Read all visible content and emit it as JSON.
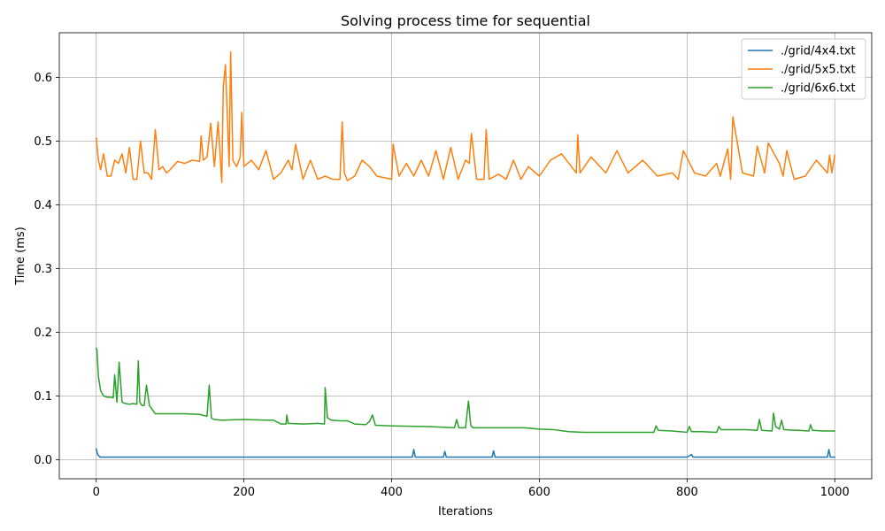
{
  "chart_data": {
    "type": "line",
    "title": "Solving process time for sequential",
    "xlabel": "Iterations",
    "ylabel": "Time (ms)",
    "xlim": [
      -50,
      1050
    ],
    "ylim": [
      -0.03,
      0.67
    ],
    "xticks": [
      0,
      200,
      400,
      600,
      800,
      1000
    ],
    "yticks": [
      0.0,
      0.1,
      0.2,
      0.3,
      0.4,
      0.5,
      0.6
    ],
    "xtick_labels": [
      "0",
      "200",
      "400",
      "600",
      "800",
      "1000"
    ],
    "ytick_labels": [
      "0.0",
      "0.1",
      "0.2",
      "0.3",
      "0.4",
      "0.5",
      "0.6"
    ],
    "grid": true,
    "legend_position": "top-right",
    "series": [
      {
        "name": "./grid/4x4.txt",
        "color": "#1f77b4",
        "x": [
          0,
          2,
          5,
          20,
          60,
          100,
          150,
          200,
          250,
          300,
          350,
          400,
          428,
          430,
          432,
          470,
          472,
          474,
          536,
          538,
          540,
          600,
          650,
          700,
          750,
          800,
          806,
          808,
          810,
          850,
          900,
          950,
          990,
          992,
          994,
          1000
        ],
        "y": [
          0.017,
          0.008,
          0.004,
          0.004,
          0.004,
          0.004,
          0.004,
          0.004,
          0.004,
          0.004,
          0.004,
          0.004,
          0.004,
          0.016,
          0.004,
          0.004,
          0.013,
          0.004,
          0.004,
          0.014,
          0.004,
          0.004,
          0.004,
          0.004,
          0.004,
          0.004,
          0.008,
          0.004,
          0.004,
          0.004,
          0.004,
          0.004,
          0.004,
          0.016,
          0.004,
          0.004
        ]
      },
      {
        "name": "./grid/5x5.txt",
        "color": "#ff7f0e",
        "x": [
          0,
          3,
          6,
          10,
          15,
          20,
          25,
          30,
          35,
          40,
          45,
          50,
          55,
          60,
          65,
          70,
          75,
          80,
          85,
          90,
          95,
          100,
          110,
          120,
          130,
          140,
          142,
          145,
          150,
          155,
          160,
          165,
          170,
          172,
          175,
          180,
          182,
          185,
          190,
          195,
          197,
          200,
          210,
          220,
          230,
          240,
          250,
          260,
          265,
          270,
          280,
          290,
          300,
          310,
          320,
          330,
          333,
          336,
          340,
          350,
          360,
          370,
          380,
          400,
          402,
          410,
          420,
          430,
          440,
          450,
          460,
          470,
          480,
          490,
          500,
          505,
          508,
          515,
          525,
          528,
          532,
          545,
          555,
          565,
          575,
          585,
          600,
          615,
          630,
          650,
          652,
          655,
          670,
          690,
          705,
          720,
          740,
          760,
          780,
          788,
          795,
          810,
          825,
          840,
          845,
          855,
          859,
          862,
          875,
          890,
          895,
          905,
          910,
          925,
          930,
          935,
          945,
          960,
          975,
          990,
          993,
          996,
          1000
        ],
        "y": [
          0.505,
          0.47,
          0.455,
          0.48,
          0.445,
          0.445,
          0.47,
          0.465,
          0.48,
          0.45,
          0.49,
          0.44,
          0.44,
          0.5,
          0.45,
          0.45,
          0.44,
          0.518,
          0.455,
          0.46,
          0.45,
          0.455,
          0.468,
          0.465,
          0.47,
          0.468,
          0.508,
          0.47,
          0.475,
          0.528,
          0.46,
          0.53,
          0.435,
          0.585,
          0.62,
          0.46,
          0.64,
          0.47,
          0.46,
          0.475,
          0.545,
          0.46,
          0.47,
          0.455,
          0.485,
          0.44,
          0.45,
          0.47,
          0.455,
          0.495,
          0.44,
          0.47,
          0.44,
          0.445,
          0.44,
          0.44,
          0.53,
          0.45,
          0.438,
          0.445,
          0.47,
          0.46,
          0.445,
          0.44,
          0.495,
          0.445,
          0.465,
          0.445,
          0.47,
          0.445,
          0.485,
          0.44,
          0.49,
          0.44,
          0.47,
          0.465,
          0.512,
          0.44,
          0.44,
          0.518,
          0.44,
          0.448,
          0.44,
          0.47,
          0.44,
          0.46,
          0.445,
          0.47,
          0.48,
          0.45,
          0.51,
          0.45,
          0.475,
          0.45,
          0.485,
          0.45,
          0.47,
          0.445,
          0.45,
          0.44,
          0.485,
          0.45,
          0.445,
          0.465,
          0.445,
          0.488,
          0.44,
          0.538,
          0.45,
          0.445,
          0.492,
          0.45,
          0.497,
          0.465,
          0.445,
          0.485,
          0.44,
          0.445,
          0.47,
          0.45,
          0.478,
          0.45,
          0.478
        ]
      },
      {
        "name": "./grid/6x6.txt",
        "color": "#2ca02c",
        "x": [
          0,
          1,
          3,
          6,
          10,
          15,
          20,
          23,
          25,
          28,
          31,
          35,
          40,
          45,
          50,
          55,
          57,
          59,
          62,
          65,
          68,
          72,
          80,
          100,
          120,
          140,
          150,
          153,
          156,
          160,
          170,
          200,
          230,
          240,
          250,
          257,
          258,
          260,
          280,
          300,
          309,
          310,
          313,
          318,
          330,
          340,
          350,
          365,
          370,
          374,
          378,
          400,
          450,
          485,
          488,
          491,
          500,
          504,
          507,
          510,
          520,
          540,
          560,
          580,
          600,
          620,
          640,
          660,
          680,
          700,
          720,
          740,
          755,
          758,
          761,
          780,
          800,
          803,
          806,
          820,
          840,
          843,
          846,
          860,
          880,
          895,
          898,
          901,
          915,
          917,
          920,
          925,
          928,
          931,
          950,
          965,
          967,
          970,
          985,
          1000
        ],
        "y": [
          0.175,
          0.172,
          0.13,
          0.108,
          0.1,
          0.098,
          0.098,
          0.097,
          0.133,
          0.09,
          0.153,
          0.09,
          0.088,
          0.087,
          0.088,
          0.087,
          0.155,
          0.09,
          0.085,
          0.085,
          0.117,
          0.085,
          0.072,
          0.072,
          0.072,
          0.071,
          0.068,
          0.117,
          0.065,
          0.063,
          0.062,
          0.063,
          0.062,
          0.062,
          0.056,
          0.056,
          0.07,
          0.057,
          0.056,
          0.057,
          0.056,
          0.113,
          0.066,
          0.062,
          0.061,
          0.061,
          0.056,
          0.055,
          0.06,
          0.07,
          0.054,
          0.053,
          0.052,
          0.05,
          0.063,
          0.05,
          0.05,
          0.092,
          0.054,
          0.05,
          0.05,
          0.05,
          0.05,
          0.05,
          0.048,
          0.047,
          0.044,
          0.043,
          0.043,
          0.043,
          0.043,
          0.043,
          0.043,
          0.053,
          0.046,
          0.045,
          0.043,
          0.052,
          0.044,
          0.044,
          0.043,
          0.052,
          0.047,
          0.047,
          0.047,
          0.046,
          0.063,
          0.046,
          0.045,
          0.073,
          0.052,
          0.048,
          0.062,
          0.047,
          0.046,
          0.045,
          0.055,
          0.046,
          0.045,
          0.045
        ]
      }
    ]
  }
}
